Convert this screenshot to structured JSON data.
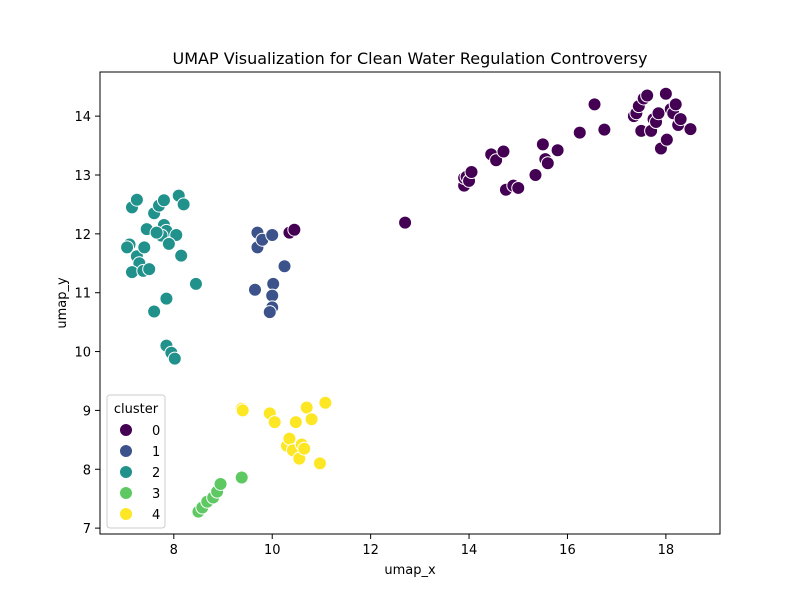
{
  "chart_data": {
    "type": "scatter",
    "title": "UMAP Visualization for Clean Water Regulation Controversy",
    "xlabel": "umap_x",
    "ylabel": "umap_y",
    "xlim": [
      6.5,
      19.1
    ],
    "ylim": [
      6.9,
      14.75
    ],
    "xticks": [
      8,
      10,
      12,
      14,
      16,
      18
    ],
    "yticks": [
      7,
      8,
      9,
      10,
      11,
      12,
      13,
      14
    ],
    "grid": false,
    "legend": {
      "title": "cluster",
      "placement": "lower-left"
    },
    "series": [
      {
        "name": "0",
        "color": "#440154",
        "points": [
          [
            10.35,
            12.02
          ],
          [
            10.45,
            12.07
          ],
          [
            12.7,
            12.19
          ],
          [
            13.9,
            12.82
          ],
          [
            13.9,
            12.95
          ],
          [
            13.95,
            12.97
          ],
          [
            14.0,
            12.9
          ],
          [
            14.05,
            13.05
          ],
          [
            14.45,
            13.35
          ],
          [
            14.55,
            13.25
          ],
          [
            14.7,
            13.4
          ],
          [
            14.75,
            12.75
          ],
          [
            14.9,
            12.82
          ],
          [
            15.0,
            12.78
          ],
          [
            15.35,
            13.0
          ],
          [
            15.5,
            13.52
          ],
          [
            15.55,
            13.27
          ],
          [
            15.6,
            13.2
          ],
          [
            15.8,
            13.42
          ],
          [
            16.25,
            13.72
          ],
          [
            16.55,
            14.2
          ],
          [
            16.75,
            13.77
          ],
          [
            17.35,
            14.0
          ],
          [
            17.4,
            14.05
          ],
          [
            17.45,
            14.17
          ],
          [
            17.5,
            13.75
          ],
          [
            17.55,
            14.3
          ],
          [
            17.62,
            14.35
          ],
          [
            17.7,
            13.75
          ],
          [
            17.75,
            13.95
          ],
          [
            17.8,
            13.9
          ],
          [
            17.85,
            14.05
          ],
          [
            17.9,
            13.45
          ],
          [
            18.0,
            14.38
          ],
          [
            18.02,
            13.6
          ],
          [
            18.1,
            14.12
          ],
          [
            18.15,
            14.05
          ],
          [
            18.2,
            14.2
          ],
          [
            18.25,
            13.85
          ],
          [
            18.3,
            13.95
          ],
          [
            18.5,
            13.78
          ]
        ]
      },
      {
        "name": "1",
        "color": "#3b528b",
        "points": [
          [
            9.7,
            12.02
          ],
          [
            9.7,
            11.77
          ],
          [
            9.8,
            11.9
          ],
          [
            10.0,
            11.98
          ],
          [
            10.25,
            11.45
          ],
          [
            9.65,
            11.05
          ],
          [
            10.02,
            11.15
          ],
          [
            10.0,
            10.95
          ],
          [
            10.0,
            10.75
          ],
          [
            9.95,
            10.67
          ]
        ]
      },
      {
        "name": "2",
        "color": "#21918c",
        "points": [
          [
            7.15,
            12.45
          ],
          [
            7.25,
            12.58
          ],
          [
            7.45,
            12.08
          ],
          [
            7.6,
            12.35
          ],
          [
            7.7,
            12.48
          ],
          [
            7.8,
            12.57
          ],
          [
            7.8,
            12.15
          ],
          [
            7.85,
            12.05
          ],
          [
            8.1,
            12.65
          ],
          [
            8.2,
            12.5
          ],
          [
            8.05,
            11.98
          ],
          [
            7.75,
            11.97
          ],
          [
            7.65,
            12.02
          ],
          [
            7.9,
            11.83
          ],
          [
            7.1,
            11.82
          ],
          [
            7.05,
            11.77
          ],
          [
            7.25,
            11.62
          ],
          [
            7.4,
            11.77
          ],
          [
            7.3,
            11.5
          ],
          [
            7.15,
            11.35
          ],
          [
            7.38,
            11.37
          ],
          [
            7.5,
            11.4
          ],
          [
            8.15,
            11.63
          ],
          [
            8.45,
            11.15
          ],
          [
            7.85,
            10.9
          ],
          [
            7.6,
            10.68
          ],
          [
            7.85,
            10.1
          ],
          [
            7.95,
            9.98
          ],
          [
            8.02,
            9.88
          ]
        ]
      },
      {
        "name": "3",
        "color": "#5ec962",
        "points": [
          [
            8.5,
            7.28
          ],
          [
            8.58,
            7.35
          ],
          [
            8.68,
            7.45
          ],
          [
            8.8,
            7.52
          ],
          [
            8.88,
            7.62
          ],
          [
            8.95,
            7.75
          ],
          [
            9.38,
            7.86
          ]
        ]
      },
      {
        "name": "4",
        "color": "#fde725",
        "points": [
          [
            9.38,
            9.03
          ],
          [
            9.4,
            9.0
          ],
          [
            9.95,
            8.95
          ],
          [
            10.05,
            8.8
          ],
          [
            10.3,
            8.4
          ],
          [
            10.35,
            8.52
          ],
          [
            10.42,
            8.32
          ],
          [
            10.48,
            8.8
          ],
          [
            10.55,
            8.18
          ],
          [
            10.6,
            8.42
          ],
          [
            10.65,
            8.35
          ],
          [
            10.7,
            9.05
          ],
          [
            10.8,
            8.85
          ],
          [
            10.97,
            8.1
          ],
          [
            11.08,
            9.13
          ]
        ]
      }
    ]
  }
}
